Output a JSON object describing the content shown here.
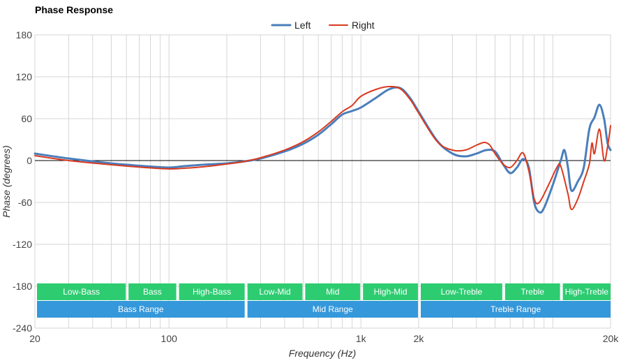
{
  "chart_data": {
    "type": "line",
    "title": "Phase Response",
    "xlabel": "Frequency (Hz)",
    "ylabel": "Phase (degrees)",
    "x_scale": "log",
    "xlim": [
      20,
      20000
    ],
    "ylim": [
      -240,
      180
    ],
    "x_ticks": [
      {
        "value": 20,
        "label": "20"
      },
      {
        "value": 100,
        "label": "100"
      },
      {
        "value": 1000,
        "label": "1k"
      },
      {
        "value": 2000,
        "label": "2k"
      },
      {
        "value": 20000,
        "label": "20k"
      }
    ],
    "y_ticks": [
      180,
      120,
      60,
      0,
      -60,
      -120,
      -180,
      -240
    ],
    "grid": true,
    "legend_position": "top-center",
    "series": [
      {
        "name": "Left",
        "color": "#4a7ebb",
        "points": [
          [
            20,
            10
          ],
          [
            30,
            3
          ],
          [
            50,
            -4
          ],
          [
            75,
            -8
          ],
          [
            100,
            -10
          ],
          [
            120,
            -8
          ],
          [
            150,
            -6
          ],
          [
            200,
            -4
          ],
          [
            250,
            -1
          ],
          [
            300,
            3
          ],
          [
            400,
            13
          ],
          [
            500,
            24
          ],
          [
            600,
            37
          ],
          [
            700,
            52
          ],
          [
            800,
            66
          ],
          [
            900,
            71
          ],
          [
            1000,
            76
          ],
          [
            1200,
            90
          ],
          [
            1400,
            102
          ],
          [
            1600,
            104
          ],
          [
            1800,
            90
          ],
          [
            2000,
            70
          ],
          [
            2500,
            28
          ],
          [
            3000,
            10
          ],
          [
            3500,
            6
          ],
          [
            4000,
            10
          ],
          [
            4500,
            15
          ],
          [
            5000,
            13
          ],
          [
            5500,
            -5
          ],
          [
            6000,
            -18
          ],
          [
            6500,
            -10
          ],
          [
            7000,
            2
          ],
          [
            7500,
            -10
          ],
          [
            8000,
            -60
          ],
          [
            8500,
            -74
          ],
          [
            9000,
            -68
          ],
          [
            10000,
            -35
          ],
          [
            11000,
            0
          ],
          [
            11500,
            15
          ],
          [
            12000,
            -10
          ],
          [
            12500,
            -43
          ],
          [
            13500,
            -30
          ],
          [
            14500,
            -10
          ],
          [
            15500,
            45
          ],
          [
            16500,
            62
          ],
          [
            17500,
            80
          ],
          [
            18500,
            60
          ],
          [
            19300,
            25
          ],
          [
            20000,
            15
          ]
        ]
      },
      {
        "name": "Right",
        "color": "#d9391f",
        "points": [
          [
            20,
            7
          ],
          [
            30,
            0
          ],
          [
            50,
            -6
          ],
          [
            75,
            -10
          ],
          [
            100,
            -12
          ],
          [
            120,
            -11
          ],
          [
            150,
            -9
          ],
          [
            200,
            -5
          ],
          [
            250,
            -1
          ],
          [
            300,
            4
          ],
          [
            400,
            15
          ],
          [
            500,
            27
          ],
          [
            600,
            41
          ],
          [
            700,
            56
          ],
          [
            800,
            70
          ],
          [
            900,
            79
          ],
          [
            1000,
            92
          ],
          [
            1200,
            102
          ],
          [
            1400,
            106
          ],
          [
            1600,
            103
          ],
          [
            1800,
            88
          ],
          [
            2000,
            68
          ],
          [
            2500,
            27
          ],
          [
            3000,
            15
          ],
          [
            3500,
            15
          ],
          [
            4000,
            22
          ],
          [
            4400,
            26
          ],
          [
            4700,
            22
          ],
          [
            5000,
            10
          ],
          [
            5500,
            -5
          ],
          [
            6000,
            -10
          ],
          [
            6500,
            0
          ],
          [
            7000,
            11
          ],
          [
            7500,
            -15
          ],
          [
            8000,
            -55
          ],
          [
            8500,
            -60
          ],
          [
            9500,
            -35
          ],
          [
            10500,
            -10
          ],
          [
            11000,
            -8
          ],
          [
            12000,
            -48
          ],
          [
            12500,
            -70
          ],
          [
            13500,
            -55
          ],
          [
            14500,
            -30
          ],
          [
            15500,
            -5
          ],
          [
            16000,
            25
          ],
          [
            16500,
            10
          ],
          [
            17500,
            45
          ],
          [
            18500,
            0
          ],
          [
            19300,
            20
          ],
          [
            20000,
            50
          ]
        ]
      }
    ],
    "bands": [
      {
        "label": "Low-Bass",
        "from": 20,
        "to": 60,
        "row": 0,
        "color": "#2ecc71"
      },
      {
        "label": "Bass",
        "from": 60,
        "to": 110,
        "row": 0,
        "color": "#2ecc71"
      },
      {
        "label": "High-Bass",
        "from": 110,
        "to": 250,
        "row": 0,
        "color": "#2ecc71"
      },
      {
        "label": "Low-Mid",
        "from": 250,
        "to": 500,
        "row": 0,
        "color": "#2ecc71"
      },
      {
        "label": "Mid",
        "from": 500,
        "to": 1000,
        "row": 0,
        "color": "#2ecc71"
      },
      {
        "label": "High-Mid",
        "from": 1000,
        "to": 2000,
        "row": 0,
        "color": "#2ecc71"
      },
      {
        "label": "Low-Treble",
        "from": 2000,
        "to": 5500,
        "row": 0,
        "color": "#2ecc71"
      },
      {
        "label": "Treble",
        "from": 5500,
        "to": 11000,
        "row": 0,
        "color": "#2ecc71"
      },
      {
        "label": "High-Treble",
        "from": 11000,
        "to": 20000,
        "row": 0,
        "color": "#2ecc71"
      },
      {
        "label": "Bass Range",
        "from": 20,
        "to": 250,
        "row": 1,
        "color": "#3498db"
      },
      {
        "label": "Mid Range",
        "from": 250,
        "to": 2000,
        "row": 1,
        "color": "#3498db"
      },
      {
        "label": "Treble Range",
        "from": 2000,
        "to": 20000,
        "row": 1,
        "color": "#3498db"
      }
    ]
  }
}
